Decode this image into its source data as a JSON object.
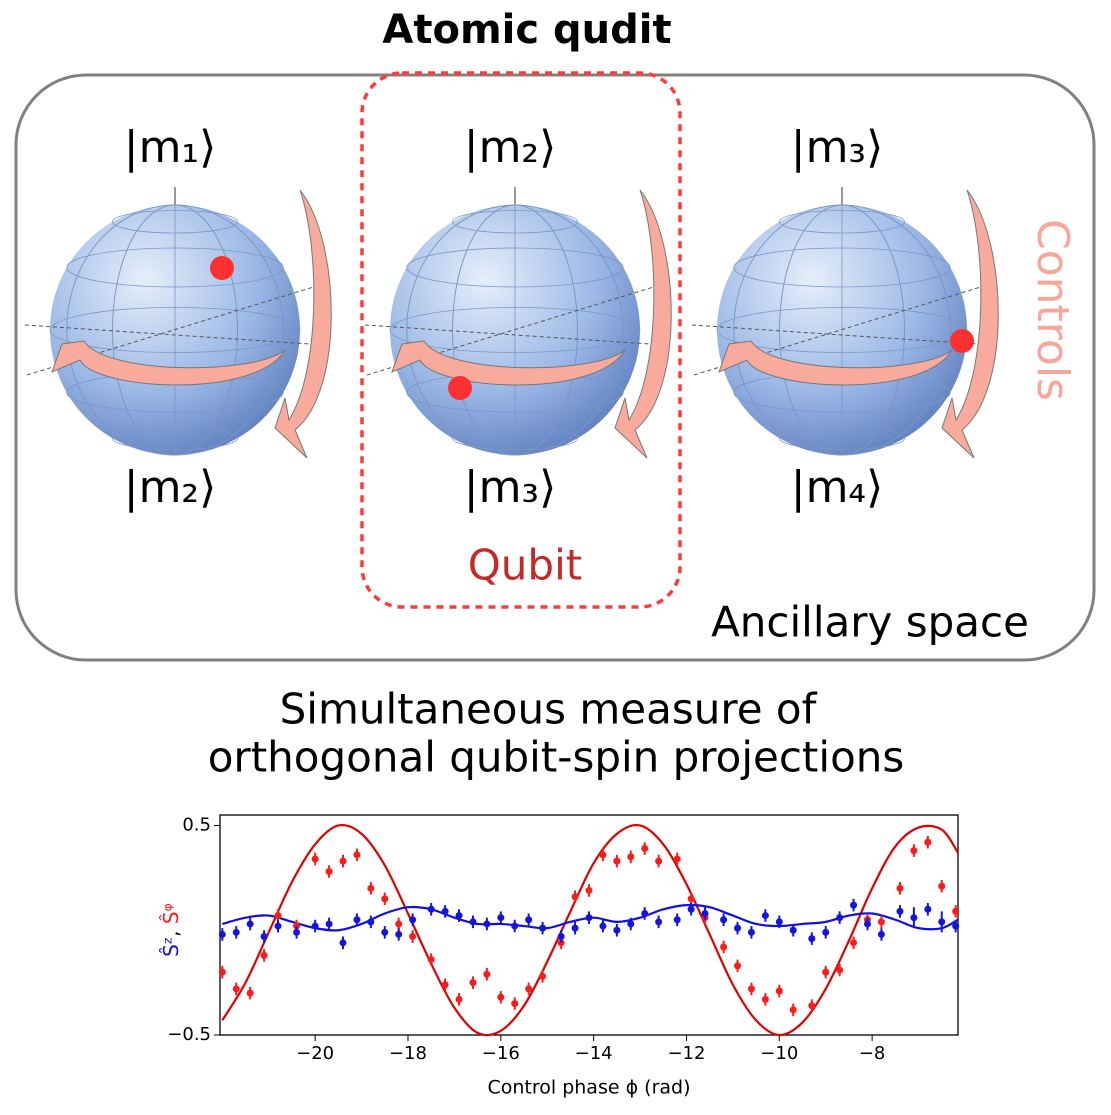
{
  "title": "Atomic qudit",
  "kets": [
    {
      "top": "|m₁⟩",
      "bottom": "|m₂⟩"
    },
    {
      "top": "|m₂⟩",
      "bottom": "|m₃⟩"
    },
    {
      "top": "|m₃⟩",
      "bottom": "|m₄⟩"
    }
  ],
  "controls": "Controls",
  "qubit": "Qubit",
  "ancillary": "Ancillary space",
  "chart_title": [
    "Simultaneous measure of",
    "orthogonal qubit-spin projections"
  ],
  "chart_data": {
    "type": "scatter",
    "xlabel": "Control phase ϕ (rad)",
    "ylabel": [
      "Ŝᶻ",
      ", ",
      "Ŝᵠ"
    ],
    "xlim": [
      -22.05,
      -6.15
    ],
    "ylim": [
      -0.5,
      0.55
    ],
    "xticks": [
      {
        "value": -20,
        "label": "−20"
      },
      {
        "value": -18,
        "label": "−18"
      },
      {
        "value": -16,
        "label": "−16"
      },
      {
        "value": -14,
        "label": "−14"
      },
      {
        "value": -12,
        "label": "−12"
      },
      {
        "value": -10,
        "label": "−10"
      },
      {
        "value": -8,
        "label": "−8"
      }
    ],
    "yticks": [
      {
        "value": -0.5,
        "label": "−0.5"
      },
      0.5
    ],
    "series": [
      {
        "color": "#ff1a1a",
        "x": [
          -22.0,
          -21.7,
          -21.4,
          -21.1,
          -20.8,
          -20.4,
          -20.0,
          -19.7,
          -19.4,
          -19.1,
          -18.8,
          -18.5,
          -18.2,
          -17.9,
          -17.5,
          -17.2,
          -16.9,
          -16.6,
          -16.3,
          -16.0,
          -15.7,
          -15.4,
          -15.1,
          -14.7,
          -14.4,
          -14.1,
          -13.8,
          -13.5,
          -13.2,
          -12.9,
          -12.6,
          -12.2,
          -11.9,
          -11.6,
          -11.2,
          -10.9,
          -10.6,
          -10.3,
          -10.0,
          -9.7,
          -9.3,
          -9.0,
          -8.7,
          -8.4,
          -8.1,
          -7.8,
          -7.4,
          -7.1,
          -6.8,
          -6.5,
          -6.2
        ],
        "values": [
          -0.2,
          -0.28,
          -0.3,
          -0.12,
          0.07,
          0.02,
          0.34,
          0.28,
          0.33,
          0.36,
          0.2,
          0.15,
          0.03,
          -0.03,
          -0.14,
          -0.26,
          -0.33,
          -0.25,
          -0.21,
          -0.32,
          -0.35,
          -0.28,
          -0.22,
          -0.06,
          0.16,
          0.19,
          0.36,
          0.33,
          0.35,
          0.39,
          0.33,
          0.34,
          0.15,
          0.06,
          -0.08,
          -0.17,
          -0.28,
          -0.33,
          -0.29,
          -0.38,
          -0.36,
          -0.2,
          -0.19,
          -0.06,
          0.05,
          0.04,
          0.2,
          0.38,
          0.42,
          0.21,
          0.09
        ],
        "errors": [
          0.03,
          0.03,
          0.03,
          0.03,
          0.03,
          0.03,
          0.03,
          0.03,
          0.03,
          0.03,
          0.03,
          0.03,
          0.03,
          0.03,
          0.03,
          0.03,
          0.03,
          0.03,
          0.03,
          0.03,
          0.03,
          0.03,
          0.03,
          0.03,
          0.03,
          0.03,
          0.03,
          0.03,
          0.03,
          0.03,
          0.03,
          0.03,
          0.03,
          0.03,
          0.03,
          0.03,
          0.03,
          0.03,
          0.03,
          0.03,
          0.03,
          0.03,
          0.03,
          0.03,
          0.03,
          0.03,
          0.03,
          0.03,
          0.03,
          0.03,
          0.03
        ]
      },
      {
        "color": "#1414e0",
        "x": [
          -22.0,
          -21.7,
          -21.4,
          -21.1,
          -20.8,
          -20.4,
          -20.0,
          -19.7,
          -19.4,
          -19.1,
          -18.8,
          -18.5,
          -18.2,
          -17.9,
          -17.5,
          -17.2,
          -16.9,
          -16.6,
          -16.3,
          -16.0,
          -15.7,
          -15.4,
          -15.1,
          -14.7,
          -14.4,
          -14.1,
          -13.8,
          -13.5,
          -13.2,
          -12.9,
          -12.6,
          -12.2,
          -11.9,
          -11.6,
          -11.2,
          -10.9,
          -10.6,
          -10.3,
          -10.0,
          -9.7,
          -9.3,
          -9.0,
          -8.7,
          -8.4,
          -8.1,
          -7.8,
          -7.4,
          -7.1,
          -6.8,
          -6.5,
          -6.2
        ],
        "values": [
          -0.02,
          -0.01,
          0.03,
          -0.03,
          0.02,
          -0.01,
          0.02,
          0.03,
          -0.06,
          0.05,
          0.04,
          -0.01,
          -0.02,
          0.05,
          0.1,
          0.09,
          0.07,
          0.04,
          0.03,
          0.06,
          0.02,
          0.05,
          0.01,
          -0.03,
          0.01,
          0.06,
          0.02,
          0.0,
          0.03,
          0.08,
          0.04,
          0.05,
          0.1,
          0.08,
          0.05,
          0.01,
          -0.01,
          0.07,
          0.04,
          0.0,
          -0.04,
          -0.01,
          0.06,
          0.12,
          0.03,
          -0.02,
          0.09,
          0.06,
          0.1,
          0.04,
          0.02
        ],
        "errors": [
          0.03,
          0.03,
          0.03,
          0.03,
          0.03,
          0.03,
          0.03,
          0.03,
          0.03,
          0.03,
          0.03,
          0.03,
          0.03,
          0.03,
          0.03,
          0.03,
          0.03,
          0.03,
          0.03,
          0.03,
          0.03,
          0.03,
          0.03,
          0.03,
          0.03,
          0.03,
          0.03,
          0.03,
          0.03,
          0.03,
          0.03,
          0.03,
          0.03,
          0.03,
          0.03,
          0.03,
          0.03,
          0.03,
          0.03,
          0.03,
          0.03,
          0.03,
          0.03,
          0.03,
          0.03,
          0.03,
          0.03,
          0.05,
          0.03,
          0.05,
          0.03
        ]
      }
    ],
    "fits": [
      {
        "color": "#e00000",
        "x": [
          -22,
          -21.5,
          -21,
          -20.5,
          -20,
          -19.5,
          -19,
          -18.5,
          -18,
          -17.5,
          -17,
          -16.5,
          -16,
          -15.5,
          -15,
          -14.5,
          -14,
          -13.5,
          -13,
          -12.5,
          -12,
          -11.5,
          -11,
          -10.5,
          -10,
          -9.5,
          -9,
          -8.5,
          -8,
          -7.5,
          -7,
          -6.5,
          -6.15
        ],
        "values": [
          -0.43,
          -0.25,
          -0.01,
          0.23,
          0.41,
          0.5,
          0.46,
          0.31,
          0.08,
          -0.16,
          -0.37,
          -0.49,
          -0.48,
          -0.36,
          -0.15,
          0.09,
          0.32,
          0.46,
          0.5,
          0.41,
          0.22,
          -0.02,
          -0.26,
          -0.43,
          -0.5,
          -0.44,
          -0.28,
          -0.05,
          0.2,
          0.4,
          0.49,
          0.48,
          0.37
        ]
      },
      {
        "color": "#1010e0",
        "x": [
          -22,
          -21.5,
          -21,
          -20.5,
          -20,
          -19.5,
          -19,
          -18.5,
          -18,
          -17.5,
          -17,
          -16.5,
          -16,
          -15.5,
          -15,
          -14.5,
          -14,
          -13.5,
          -13,
          -12.5,
          -12,
          -11.5,
          -11,
          -10.5,
          -10,
          -9.5,
          -9,
          -8.5,
          -8,
          -7.5,
          -7,
          -6.5,
          -6.15
        ],
        "values": [
          0.03,
          0.06,
          0.07,
          0.04,
          0.01,
          0.0,
          0.03,
          0.08,
          0.11,
          0.1,
          0.06,
          0.03,
          0.03,
          0.02,
          0.01,
          0.04,
          0.06,
          0.04,
          0.06,
          0.1,
          0.12,
          0.11,
          0.07,
          0.03,
          0.02,
          0.03,
          0.04,
          0.07,
          0.08,
          0.05,
          0.01,
          0.01,
          0.05
        ]
      }
    ]
  }
}
